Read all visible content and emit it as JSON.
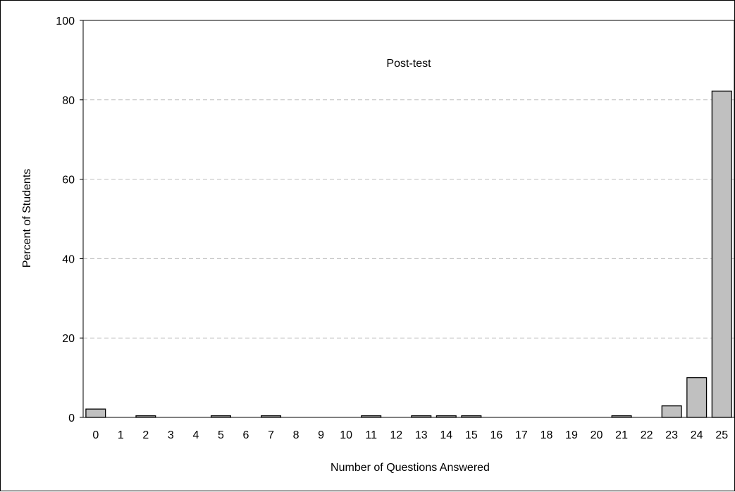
{
  "chart_data": {
    "type": "bar",
    "title": "Post-test",
    "xlabel": "Number of Questions Answered",
    "ylabel": "Percent of Students",
    "categories": [
      "0",
      "1",
      "2",
      "3",
      "4",
      "5",
      "6",
      "7",
      "8",
      "9",
      "10",
      "11",
      "12",
      "13",
      "14",
      "15",
      "16",
      "17",
      "18",
      "19",
      "20",
      "21",
      "22",
      "23",
      "24",
      "25"
    ],
    "values": [
      2.1,
      0,
      0.4,
      0,
      0,
      0.4,
      0,
      0.4,
      0,
      0,
      0,
      0.4,
      0,
      0.4,
      0.4,
      0.4,
      0,
      0,
      0,
      0,
      0,
      0.4,
      0,
      2.9,
      10.0,
      82.2
    ],
    "ylim": [
      0,
      100
    ],
    "yticks": [
      0,
      20,
      40,
      60,
      80,
      100
    ],
    "grid": true,
    "grid_style": "dashed",
    "legend": "none",
    "bar_color": "#c0c0c0",
    "bar_edge_color": "#000000",
    "grid_color": "#bfbfbf"
  }
}
